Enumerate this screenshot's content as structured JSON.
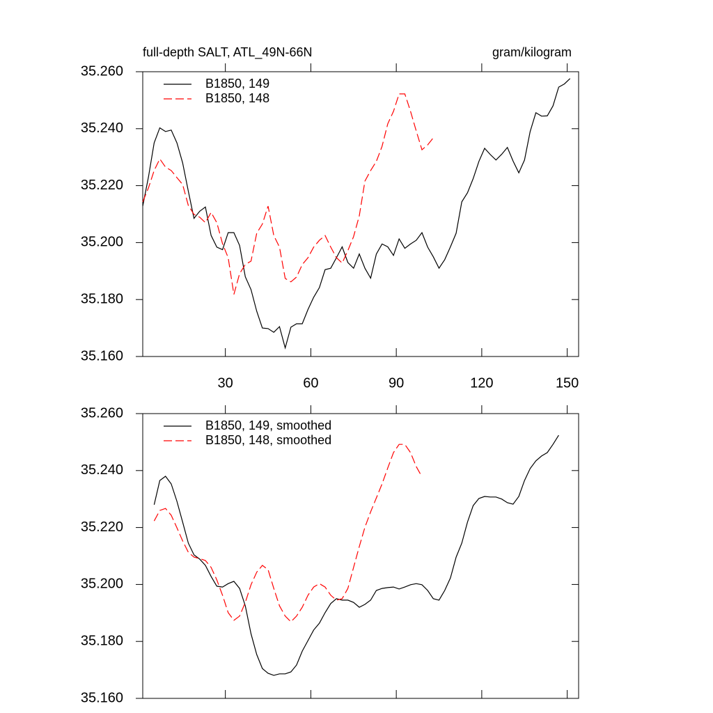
{
  "chart_data": [
    {
      "type": "line",
      "title": "full-depth SALT, ATL_49N-66N",
      "units": "gram/kilogram",
      "x": [
        1,
        3,
        5,
        7,
        9,
        11,
        13,
        15,
        17,
        19,
        21,
        23,
        25,
        27,
        29,
        31,
        33,
        35,
        37,
        39,
        41,
        43,
        45,
        47,
        49,
        51,
        53,
        55,
        57,
        59,
        61,
        63,
        65,
        67,
        69,
        71,
        73,
        75,
        77,
        79,
        81,
        83,
        85,
        87,
        89,
        91,
        93,
        95,
        97,
        99,
        101,
        103,
        105,
        107,
        109,
        111,
        113,
        115,
        117,
        119,
        121,
        123,
        125,
        127,
        129,
        131,
        133,
        135,
        137,
        139,
        141,
        143,
        145,
        147,
        149,
        151
      ],
      "series": [
        {
          "name": "B1850, 149",
          "color": "#000000",
          "dash": false,
          "values": [
            35.2128,
            35.223,
            35.235,
            35.2403,
            35.239,
            35.2395,
            35.235,
            35.228,
            35.218,
            35.2085,
            35.211,
            35.2125,
            35.2025,
            35.1984,
            35.1975,
            35.2035,
            35.2035,
            35.199,
            35.188,
            35.1835,
            35.1759,
            35.17,
            35.1698,
            35.1685,
            35.1705,
            35.163,
            35.1703,
            35.1715,
            35.1715,
            35.1765,
            35.1808,
            35.1842,
            35.1905,
            35.191,
            35.1947,
            35.1985,
            35.193,
            35.191,
            35.196,
            35.191,
            35.1875,
            35.196,
            35.1995,
            35.1985,
            35.1955,
            35.2013,
            35.198,
            35.1995,
            35.2008,
            35.2035,
            35.1984,
            35.195,
            35.191,
            35.194,
            35.1985,
            35.2033,
            35.2143,
            35.2175,
            35.2225,
            35.2285,
            35.2331,
            35.2309,
            35.229,
            35.231,
            35.2334,
            35.2286,
            35.2245,
            35.229,
            35.239,
            35.2456,
            35.2444,
            35.2445,
            35.248,
            35.2546,
            35.2557,
            35.2576
          ]
        },
        {
          "name": "B1850, 148",
          "color": "#ff0000",
          "dash": true,
          "values": [
            35.2143,
            35.2192,
            35.2253,
            35.2294,
            35.2265,
            35.2253,
            35.2228,
            35.2204,
            35.213,
            35.2099,
            35.2089,
            35.207,
            35.2106,
            35.207,
            35.1996,
            35.1947,
            35.1818,
            35.1891,
            35.1923,
            35.1935,
            35.2033,
            35.2065,
            35.2128,
            35.2025,
            35.1984,
            35.1874,
            35.1862,
            35.1879,
            35.1923,
            35.1947,
            35.1984,
            35.2008,
            35.2025,
            35.1984,
            35.1947,
            35.1928,
            35.1972,
            35.2021,
            35.2094,
            35.2216,
            35.2253,
            35.2285,
            35.2338,
            35.2417,
            35.2461,
            35.2522,
            35.2522,
            35.2461,
            35.2392,
            35.2326,
            35.2343,
            35.2368,
            null,
            null,
            null,
            null,
            null,
            null,
            null,
            null,
            null,
            null,
            null,
            null,
            null,
            null,
            null,
            null,
            null,
            null,
            null,
            null,
            null,
            null,
            null,
            null
          ]
        }
      ],
      "xlim": [
        1,
        154
      ],
      "xticks": [
        30,
        60,
        90,
        120,
        150
      ],
      "show_xtick_labels": true,
      "ylim": [
        35.16,
        35.26
      ],
      "yticks": [
        {
          "value": 35.16,
          "label": "35.160"
        },
        {
          "value": 35.18,
          "label": "35.180"
        },
        {
          "value": 35.2,
          "label": "35.200"
        },
        {
          "value": 35.22,
          "label": "35.220"
        },
        {
          "value": 35.24,
          "label": "35.240"
        },
        {
          "value": 35.26,
          "label": "35.260"
        }
      ],
      "legend": "upper-left"
    },
    {
      "type": "line",
      "x": [
        1,
        3,
        5,
        7,
        9,
        11,
        13,
        15,
        17,
        19,
        21,
        23,
        25,
        27,
        29,
        31,
        33,
        35,
        37,
        39,
        41,
        43,
        45,
        47,
        49,
        51,
        53,
        55,
        57,
        59,
        61,
        63,
        65,
        67,
        69,
        71,
        73,
        75,
        77,
        79,
        81,
        83,
        85,
        87,
        89,
        91,
        93,
        95,
        97,
        99,
        101,
        103,
        105,
        107,
        109,
        111,
        113,
        115,
        117,
        119,
        121,
        123,
        125,
        127,
        129,
        131,
        133,
        135,
        137,
        139,
        141,
        143,
        145,
        147,
        149,
        151
      ],
      "series": [
        {
          "name": "B1850, 149, smoothed",
          "color": "#000000",
          "dash": false,
          "values": [
            null,
            null,
            35.228,
            35.2365,
            35.238,
            35.2353,
            35.2292,
            35.2219,
            35.2145,
            35.2104,
            35.2089,
            35.2067,
            35.2028,
            35.1994,
            35.1991,
            35.2003,
            35.2011,
            35.1986,
            35.1925,
            35.1827,
            35.1754,
            35.1705,
            35.1688,
            35.1681,
            35.1686,
            35.1686,
            35.1693,
            35.1717,
            35.1766,
            35.1803,
            35.184,
            35.1864,
            35.1901,
            35.1933,
            35.195,
            35.1945,
            35.1945,
            35.1937,
            35.192,
            35.193,
            35.1945,
            35.1979,
            35.1986,
            35.1989,
            35.1991,
            35.1984,
            35.1991,
            35.1999,
            35.2003,
            35.1999,
            35.1979,
            35.195,
            35.1945,
            35.1979,
            35.2023,
            35.2096,
            35.2145,
            35.2219,
            35.2277,
            35.2302,
            35.2309,
            35.2307,
            35.2307,
            35.23,
            35.2287,
            35.2282,
            35.2309,
            35.2365,
            35.2407,
            35.2434,
            35.2451,
            35.2463,
            35.2492,
            35.2524,
            null,
            null
          ]
        },
        {
          "name": "B1850, 148, smoothed",
          "color": "#ff0000",
          "dash": true,
          "values": [
            null,
            null,
            35.2223,
            35.226,
            35.2267,
            35.2243,
            35.2199,
            35.2153,
            35.2113,
            35.2096,
            35.2091,
            35.2084,
            35.206,
            35.2016,
            35.1962,
            35.1901,
            35.1874,
            35.1889,
            35.1937,
            35.1999,
            35.2043,
            35.2067,
            35.2052,
            35.1986,
            35.1925,
            35.1889,
            35.1869,
            35.1889,
            35.192,
            35.1962,
            35.1991,
            35.2003,
            35.1991,
            35.1962,
            35.1945,
            35.195,
            35.1986,
            35.206,
            35.2133,
            35.2201,
            35.2255,
            35.2304,
            35.2353,
            35.2409,
            35.2463,
            35.2492,
            35.2492,
            35.2463,
            35.2414,
            35.2378,
            null,
            null,
            null,
            null,
            null,
            null,
            null,
            null,
            null,
            null,
            null,
            null,
            null,
            null,
            null,
            null,
            null,
            null,
            null,
            null,
            null,
            null,
            null,
            null,
            null,
            null
          ]
        }
      ],
      "xlim": [
        1,
        154
      ],
      "xticks": [
        30,
        60,
        90,
        120,
        150
      ],
      "show_xtick_labels": false,
      "ylim": [
        35.16,
        35.26
      ],
      "yticks": [
        {
          "value": 35.16,
          "label": "35.160"
        },
        {
          "value": 35.18,
          "label": "35.180"
        },
        {
          "value": 35.2,
          "label": "35.200"
        },
        {
          "value": 35.22,
          "label": "35.220"
        },
        {
          "value": 35.24,
          "label": "35.240"
        },
        {
          "value": 35.26,
          "label": "35.260"
        }
      ],
      "legend": "upper-left"
    }
  ]
}
